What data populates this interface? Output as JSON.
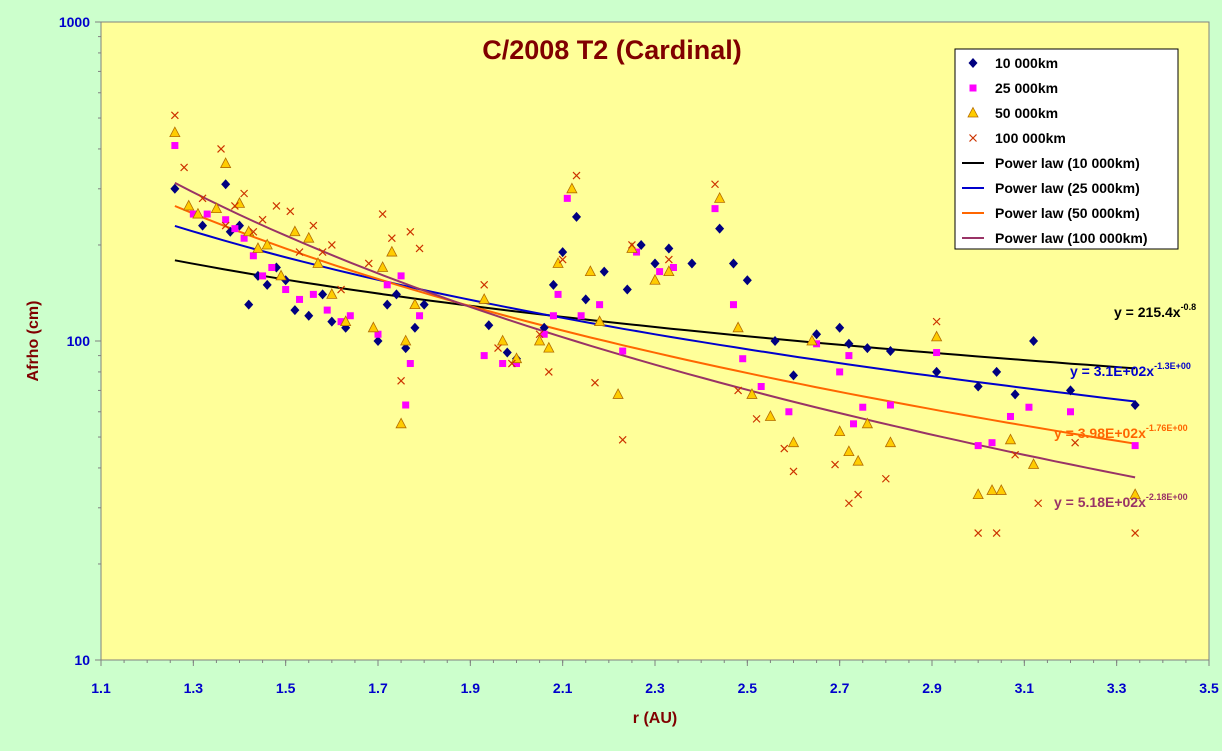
{
  "chart_data": {
    "type": "scatter",
    "title": "C/2008 T2 (Cardinal)",
    "xlabel": "r (AU)",
    "ylabel": "Afrho (cm)",
    "xlim": [
      1.1,
      3.5
    ],
    "ylim": [
      10,
      1000
    ],
    "yscale": "log",
    "x_ticks": [
      "1.1",
      "1.3",
      "1.5",
      "1.7",
      "1.9",
      "2.1",
      "2.3",
      "2.5",
      "2.7",
      "2.9",
      "3.1",
      "3.3",
      "3.5"
    ],
    "y_ticks": [
      "10",
      "100",
      "1000"
    ],
    "grid": false,
    "legend_position": "top-right",
    "colors": {
      "plot_bg": "#ffff99",
      "outer_bg": "#ccffcc",
      "s10": "#000080",
      "s25": "#ff00ff",
      "s50_fill": "#ffcc00",
      "s50_edge": "#b36b00",
      "s100": "#cc3300",
      "fit10": "#000000",
      "fit25": "#0000cc",
      "fit50": "#ff6600",
      "fit100": "#993366"
    },
    "series": [
      {
        "name": "10 000km",
        "marker": "diamond",
        "x": [
          1.26,
          1.32,
          1.37,
          1.38,
          1.4,
          1.42,
          1.44,
          1.46,
          1.48,
          1.5,
          1.52,
          1.55,
          1.58,
          1.6,
          1.63,
          1.7,
          1.72,
          1.74,
          1.76,
          1.78,
          1.8,
          1.94,
          1.98,
          2.0,
          2.06,
          2.08,
          2.1,
          2.13,
          2.15,
          2.19,
          2.24,
          2.27,
          2.3,
          2.33,
          2.38,
          2.44,
          2.47,
          2.5,
          2.56,
          2.6,
          2.65,
          2.7,
          2.72,
          2.76,
          2.81,
          2.91,
          3.0,
          3.04,
          3.08,
          3.12,
          3.2,
          3.34
        ],
        "y": [
          300,
          230,
          310,
          220,
          230,
          130,
          160,
          150,
          170,
          155,
          125,
          120,
          140,
          115,
          110,
          100,
          130,
          140,
          95,
          110,
          130,
          112,
          92,
          88,
          110,
          150,
          190,
          245,
          135,
          165,
          145,
          200,
          175,
          195,
          175,
          225,
          175,
          155,
          100,
          78,
          105,
          110,
          98,
          95,
          93,
          80,
          72,
          80,
          68,
          100,
          70,
          63
        ]
      },
      {
        "name": "25 000km",
        "marker": "square",
        "x": [
          1.26,
          1.3,
          1.33,
          1.37,
          1.39,
          1.41,
          1.43,
          1.45,
          1.47,
          1.5,
          1.53,
          1.56,
          1.59,
          1.62,
          1.64,
          1.7,
          1.72,
          1.75,
          1.76,
          1.77,
          1.79,
          1.93,
          1.97,
          2.0,
          2.06,
          2.08,
          2.09,
          2.11,
          2.14,
          2.18,
          2.23,
          2.26,
          2.31,
          2.34,
          2.43,
          2.47,
          2.49,
          2.53,
          2.59,
          2.65,
          2.7,
          2.72,
          2.73,
          2.75,
          2.81,
          2.91,
          3.0,
          3.03,
          3.07,
          3.11,
          3.2,
          3.34
        ],
        "y": [
          410,
          250,
          250,
          240,
          225,
          210,
          185,
          160,
          170,
          145,
          135,
          140,
          125,
          115,
          120,
          105,
          150,
          160,
          63,
          85,
          120,
          90,
          85,
          85,
          105,
          120,
          140,
          280,
          120,
          130,
          93,
          190,
          165,
          170,
          260,
          130,
          88,
          72,
          60,
          98,
          80,
          90,
          55,
          62,
          63,
          92,
          47,
          48,
          58,
          62,
          60,
          47
        ]
      },
      {
        "name": "50 000km",
        "marker": "triangle",
        "x": [
          1.26,
          1.29,
          1.31,
          1.35,
          1.37,
          1.4,
          1.42,
          1.44,
          1.46,
          1.49,
          1.52,
          1.55,
          1.57,
          1.6,
          1.63,
          1.69,
          1.71,
          1.73,
          1.75,
          1.76,
          1.78,
          1.93,
          1.97,
          2.0,
          2.05,
          2.07,
          2.09,
          2.12,
          2.16,
          2.18,
          2.22,
          2.25,
          2.3,
          2.33,
          2.44,
          2.48,
          2.51,
          2.55,
          2.6,
          2.64,
          2.7,
          2.72,
          2.74,
          2.76,
          2.81,
          2.91,
          3.0,
          3.03,
          3.05,
          3.07,
          3.12,
          3.34
        ],
        "y": [
          450,
          265,
          250,
          260,
          360,
          270,
          220,
          195,
          200,
          160,
          220,
          210,
          175,
          140,
          115,
          110,
          170,
          190,
          55,
          100,
          130,
          135,
          100,
          88,
          100,
          95,
          175,
          300,
          165,
          115,
          68,
          195,
          155,
          165,
          280,
          110,
          68,
          58,
          48,
          100,
          52,
          45,
          42,
          55,
          48,
          103,
          33,
          34,
          34,
          49,
          41,
          33
        ]
      },
      {
        "name": "100 000km",
        "marker": "cross",
        "x": [
          1.26,
          1.28,
          1.32,
          1.36,
          1.37,
          1.39,
          1.41,
          1.43,
          1.45,
          1.48,
          1.51,
          1.53,
          1.56,
          1.58,
          1.6,
          1.62,
          1.68,
          1.71,
          1.73,
          1.75,
          1.77,
          1.79,
          1.93,
          1.96,
          1.99,
          2.05,
          2.07,
          2.1,
          2.13,
          2.17,
          2.23,
          2.25,
          2.33,
          2.43,
          2.48,
          2.52,
          2.58,
          2.6,
          2.69,
          2.72,
          2.74,
          2.8,
          2.91,
          3.0,
          3.04,
          3.08,
          3.13,
          3.21,
          3.34
        ],
        "y": [
          510,
          350,
          280,
          400,
          230,
          265,
          290,
          220,
          240,
          265,
          255,
          190,
          230,
          190,
          200,
          145,
          175,
          250,
          210,
          75,
          220,
          195,
          150,
          95,
          85,
          105,
          80,
          180,
          330,
          74,
          49,
          200,
          180,
          310,
          70,
          57,
          46,
          39,
          41,
          31,
          33,
          37,
          115,
          25,
          25,
          44,
          31,
          48,
          25
        ]
      }
    ],
    "fits": [
      {
        "name": "Power law (10 000km)",
        "coef": 215.4,
        "exp": -0.8,
        "equation": "y = 215.4x",
        "sup": "-0.8"
      },
      {
        "name": "Power law (25 000km)",
        "coef": 310,
        "exp": -1.3,
        "equation": "y = 3.1E+02x",
        "sup": "-1.3E+00"
      },
      {
        "name": "Power law (50 000km)",
        "coef": 398,
        "exp": -1.76,
        "equation": "y = 3.98E+02x",
        "sup": "-1.76E+00"
      },
      {
        "name": "Power law (100 000km)",
        "coef": 518,
        "exp": -2.18,
        "equation": "y = 5.18E+02x",
        "sup": "-2.18E+00"
      }
    ],
    "fit_x_range": [
      1.26,
      3.34
    ]
  }
}
